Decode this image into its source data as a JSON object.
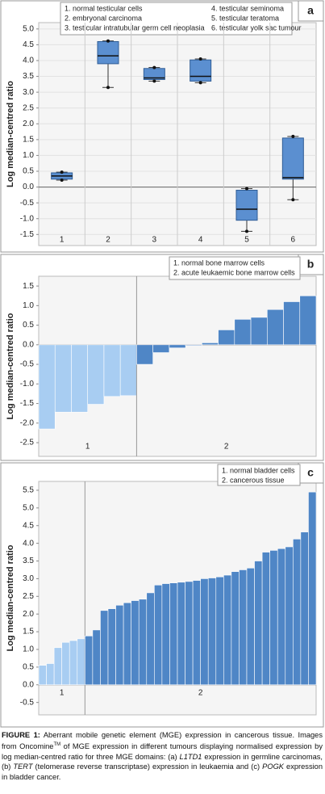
{
  "chart_data": [
    {
      "type": "box",
      "label": "a",
      "ylabel": "Log median-centred ratio",
      "legend": [
        "1. normal testicular cells",
        "2. embryonal carcinoma",
        "3. testicular intratubular germ cell neoplasia",
        "4. testicular seminoma",
        "5. testicular teratoma",
        "6. testicular yolk sac tumour"
      ],
      "categories": [
        "1",
        "2",
        "3",
        "4",
        "5",
        "6"
      ],
      "min": [
        0.22,
        3.15,
        3.35,
        3.3,
        -1.4,
        -0.4
      ],
      "q1": [
        0.25,
        3.9,
        3.4,
        3.35,
        -1.05,
        0.25
      ],
      "median": [
        0.35,
        4.15,
        3.45,
        3.5,
        -0.7,
        0.3
      ],
      "q3": [
        0.45,
        4.6,
        3.75,
        4.02,
        -0.1,
        1.55
      ],
      "max": [
        0.47,
        4.62,
        3.78,
        4.05,
        -0.05,
        1.6
      ],
      "color": "#5b8fd0",
      "ylim": [
        -1.85,
        5.2
      ],
      "yticks": [
        {
          "value": 5,
          "label": "5.0"
        },
        4.5,
        {
          "value": 4,
          "label": "4.0"
        },
        3.5,
        {
          "value": 3,
          "label": "3.0"
        },
        2.5,
        {
          "value": 2,
          "label": "2.0"
        },
        1.5,
        {
          "value": 1,
          "label": "1.0"
        },
        0.5,
        {
          "value": 0,
          "label": "0.0"
        },
        -0.5,
        {
          "value": -1,
          "label": "-1.0"
        },
        -1.5
      ],
      "grid": true
    },
    {
      "type": "bar",
      "label": "b",
      "ylabel": "Log median-centred ratio",
      "legend": [
        "1. normal bone marrow cells",
        "2. acute leukaemic bone marrow cells"
      ],
      "groups": [
        {
          "label": "1",
          "color": "#a8cdf2",
          "values": [
            -2.15,
            -1.72,
            -1.72,
            -1.52,
            -1.32,
            -1.3
          ]
        },
        {
          "label": "2",
          "color": "#4f86c6",
          "values": [
            -0.5,
            -0.2,
            -0.08,
            -0.02,
            0.05,
            0.38,
            0.65,
            0.7,
            0.9,
            1.1,
            1.25
          ]
        }
      ],
      "ylim": [
        -2.85,
        1.75
      ],
      "yticks": [
        1.5,
        {
          "value": 1,
          "label": "1.0"
        },
        0.5,
        {
          "value": 0,
          "label": "0.0"
        },
        -0.5,
        {
          "value": -1,
          "label": "-1.0"
        },
        -1.5,
        {
          "value": -2,
          "label": "-2.0"
        },
        -2.5
      ],
      "grid": false
    },
    {
      "type": "bar",
      "label": "c",
      "ylabel": "Log median-centred ratio",
      "legend": [
        "1. normal bladder cells",
        "2. cancerous tissue"
      ],
      "groups": [
        {
          "label": "1",
          "color": "#a8cdf2",
          "values": [
            0.55,
            0.6,
            1.05,
            1.2,
            1.25,
            1.3
          ]
        },
        {
          "label": "2",
          "color": "#4f86c6",
          "values": [
            1.38,
            1.55,
            2.1,
            2.15,
            2.25,
            2.32,
            2.38,
            2.42,
            2.6,
            2.82,
            2.86,
            2.88,
            2.9,
            2.92,
            2.95,
            3.0,
            3.02,
            3.05,
            3.1,
            3.2,
            3.25,
            3.3,
            3.5,
            3.75,
            3.8,
            3.85,
            3.9,
            4.12,
            4.32,
            5.45
          ]
        }
      ],
      "ylim": [
        -0.85,
        5.75
      ],
      "yticks": [
        5.5,
        {
          "value": 5,
          "label": "5.0"
        },
        4.5,
        {
          "value": 4,
          "label": "4.0"
        },
        3.5,
        {
          "value": 3,
          "label": "3.0"
        },
        2.5,
        {
          "value": 2,
          "label": "2.0"
        },
        1.5,
        {
          "value": 1,
          "label": "1.0"
        },
        0.5,
        {
          "value": 0,
          "label": "0.0"
        },
        -0.5
      ],
      "grid": false
    }
  ],
  "caption": [
    "FIGURE 1:",
    " Aberrant mobile genetic element (MGE) expression in cancerous tissue. Images from Oncomine",
    "TM",
    " of MGE expression in different tumours displaying normalised expression by log median-centred ratio for three MGE domains: (a) ",
    "L1TD1",
    " expression in germline carcinomas, (b) ",
    "TERT",
    " (telomerase reverse transcriptase) expression in leukaemia and (c) ",
    "POGK",
    " expression in bladder cancer."
  ]
}
